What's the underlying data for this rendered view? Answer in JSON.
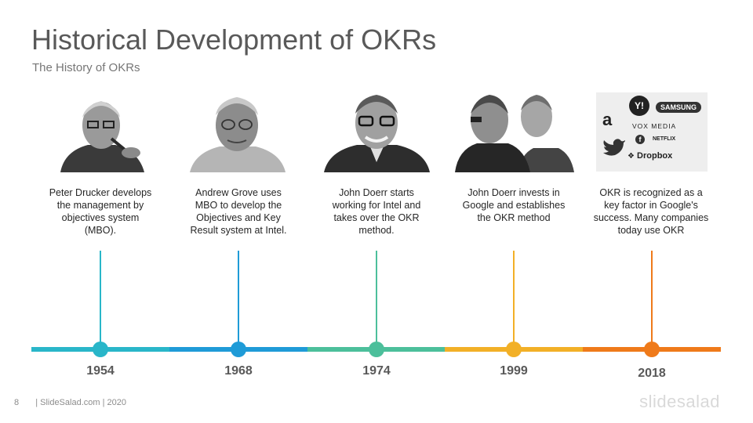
{
  "header": {
    "title": "Historical Development of OKRs",
    "subtitle": "The History of OKRs"
  },
  "timeline": [
    {
      "year": "1954",
      "description": "Peter Drucker develops the management  by objectives system (MBO).",
      "color": "#29b6c9",
      "image": "portrait-photo"
    },
    {
      "year": "1968",
      "description": "Andrew  Grove uses MBO to develop the Objectives and Key Result system at Intel.",
      "color": "#1f9bd7",
      "image": "portrait-photo"
    },
    {
      "year": "1974",
      "description": "John Doerr starts working  for Intel and takes over the OKR method.",
      "color": "#4cbf9b",
      "image": "portrait-photo"
    },
    {
      "year": "1999",
      "description": "John Doerr invests in Google and establishes the OKR method",
      "color": "#f2b027",
      "image": "portrait-photo"
    },
    {
      "year": "2018",
      "description": "OKR is recognized  as a key factor in Google's success. Many companies  today use OKR",
      "color": "#ef7a1a",
      "image": "company-logos"
    }
  ],
  "logos": {
    "yahoo": "Y!",
    "samsung": "SAMSUNG",
    "amazon": "a",
    "voxmedia": "VOX MEDIA",
    "facebook": "f",
    "netflix": "NETFLIX",
    "dropbox": "Dropbox"
  },
  "footer": {
    "page_number": "8",
    "source": "| SlideSalad.com | 2020",
    "brand": "slidesalad"
  }
}
